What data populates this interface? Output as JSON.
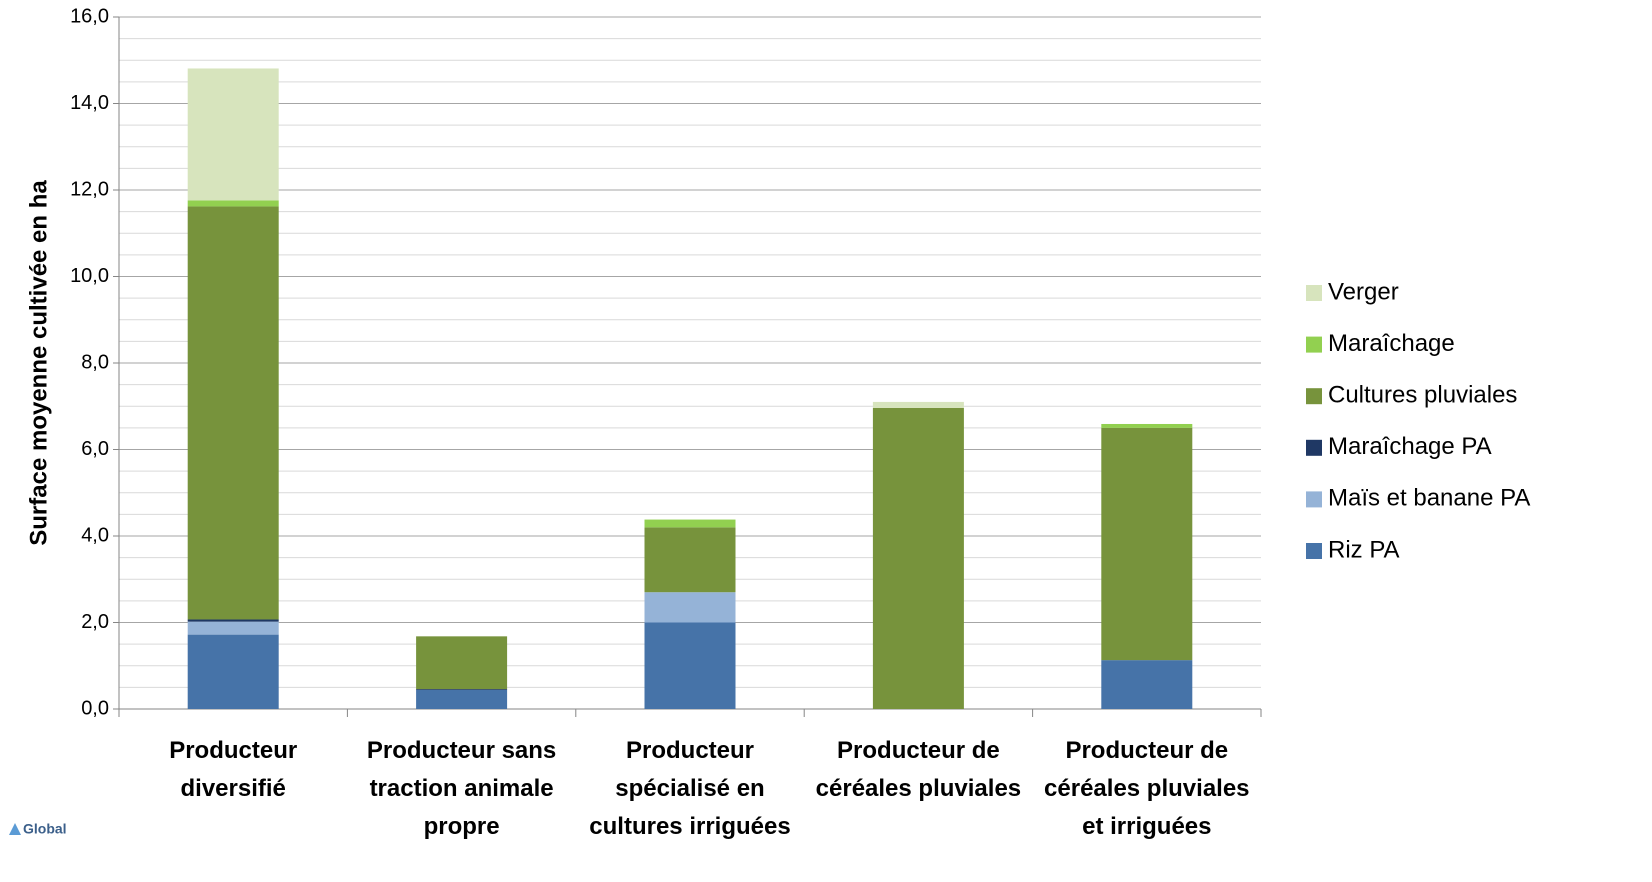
{
  "chart_data": {
    "type": "stacked_bar",
    "y_label": "Surface moyenne cultivée en ha",
    "logo_text": "Global",
    "categories": [
      "Producteur\ndiversifié",
      "Producteur sans\ntraction animale\npropre",
      "Producteur\nspécialisé en\ncultures irriguées",
      "Producteur de\ncéréales pluviales",
      "Producteur de\ncéréales pluviales\net irriguées"
    ],
    "series": [
      {
        "name": "Riz PA",
        "color": "#4673a8",
        "values": [
          1.72,
          0.44,
          2.0,
          0,
          1.13
        ]
      },
      {
        "name": "Maïs et banane PA",
        "color": "#95b3d7",
        "values": [
          0.3,
          0,
          0.7,
          0,
          0
        ]
      },
      {
        "name": "Maraîchage PA",
        "color": "#1f3864",
        "values": [
          0.05,
          0.02,
          0,
          0,
          0
        ]
      },
      {
        "name": "Cultures pluviales",
        "color": "#77933c",
        "values": [
          9.55,
          1.22,
          1.5,
          6.96,
          5.37
        ]
      },
      {
        "name": "Maraîchage",
        "color": "#92d050",
        "values": [
          0.14,
          0,
          0.18,
          0,
          0.09
        ]
      },
      {
        "name": "Verger",
        "color": "#d7e4bd",
        "values": [
          3.05,
          0,
          0,
          0.14,
          0
        ]
      }
    ],
    "ylim": [
      0,
      16
    ],
    "yticks": [
      {
        "value": 0,
        "label": "0,0"
      },
      {
        "value": 2,
        "label": "2,0"
      },
      {
        "value": 4,
        "label": "4,0"
      },
      {
        "value": 6,
        "label": "6,0"
      },
      {
        "value": 8,
        "label": "8,0"
      },
      {
        "value": 10,
        "label": "10,0"
      },
      {
        "value": 12,
        "label": "12,0"
      },
      {
        "value": 14,
        "label": "14,0"
      },
      {
        "value": 16,
        "label": "16,0"
      }
    ],
    "minor_yticks": [
      0.5,
      1,
      1.5,
      2.5,
      3,
      3.5,
      4.5,
      5,
      5.5,
      6.5,
      7,
      7.5,
      8.5,
      9,
      9.5,
      10.5,
      11,
      11.5,
      12.5,
      13,
      13.5,
      14.5,
      15,
      15.5
    ],
    "grid": true,
    "legend": "right"
  }
}
